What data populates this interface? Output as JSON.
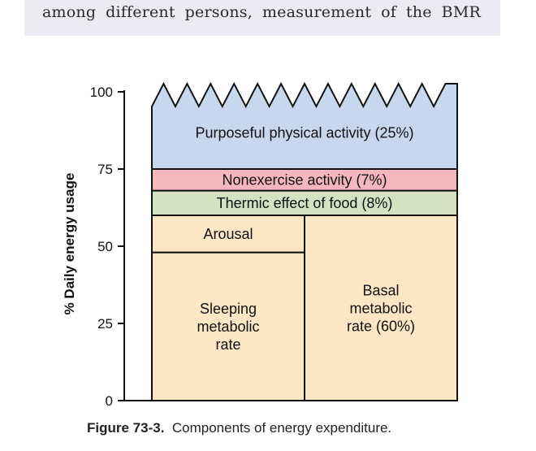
{
  "header_text": "among different persons, measurement of the BMR",
  "caption": {
    "label": "Figure 73-3.",
    "text": "Components of energy expenditure."
  },
  "chart_data": {
    "type": "bar",
    "stacked": true,
    "ylabel": "% Daily energy usage",
    "ylim": [
      0,
      100
    ],
    "yticks": [
      0,
      25,
      50,
      75,
      100
    ],
    "ytick_labels": [
      "0",
      "25",
      "50",
      "75",
      "100"
    ],
    "segments": [
      {
        "name": "Sleeping metabolic rate",
        "label": "Sleeping\nmetabolic\nrate",
        "y0": 0,
        "y1": 48,
        "column": "left",
        "color": "#fbe7c3"
      },
      {
        "name": "Arousal",
        "label": "Arousal",
        "y0": 48,
        "y1": 60,
        "column": "left",
        "color": "#fbe7c3"
      },
      {
        "name": "Basal metabolic rate",
        "label": "Basal\nmetabolic\nrate (60%)",
        "y0": 0,
        "y1": 60,
        "column": "right",
        "color": "#fbe7c3"
      },
      {
        "name": "Thermic effect of food",
        "label": "Thermic effect of food (8%)",
        "y0": 60,
        "y1": 68,
        "column": "full",
        "color": "#d3e2c3"
      },
      {
        "name": "Nonexercise activity",
        "label": "Nonexercise activity (7%)",
        "y0": 68,
        "y1": 75,
        "column": "full",
        "color": "#f4b7bb"
      },
      {
        "name": "Purposeful physical activity",
        "label": "Purposeful physical activity (25%)",
        "y0": 75,
        "y1": 100,
        "column": "full",
        "color": "#c6d7ee",
        "jagged_top": true
      }
    ]
  }
}
